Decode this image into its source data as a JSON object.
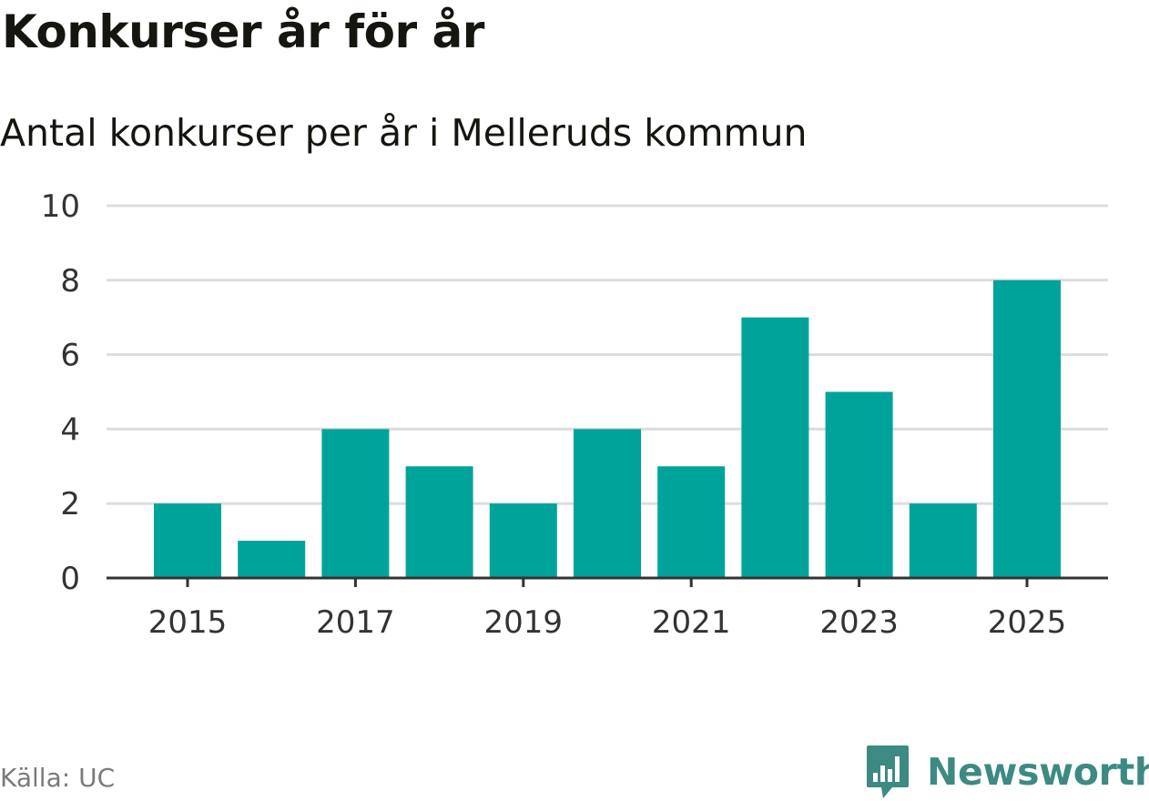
{
  "header": {
    "title": "Konkurser år för år",
    "subtitle": "Antal konkurser per år i Melleruds kommun"
  },
  "footer": {
    "source": "Källa: UC",
    "brand": "Newsworthy",
    "brand_icon": "bar-chart-badge-icon"
  },
  "colors": {
    "bar": "#00a39a",
    "grid": "#dddddd",
    "axis": "#333333",
    "brand": "#3d8a82"
  },
  "chart_data": {
    "type": "bar",
    "categories": [
      "2015",
      "2016",
      "2017",
      "2018",
      "2019",
      "2020",
      "2021",
      "2022",
      "2023",
      "2024",
      "2025"
    ],
    "series": [
      {
        "values": [
          2,
          1,
          4,
          3,
          2,
          4,
          3,
          7,
          5,
          2,
          8
        ]
      }
    ],
    "x_tick_labels": [
      "2015",
      "2017",
      "2019",
      "2021",
      "2023",
      "2025"
    ],
    "y_ticks": [
      0,
      2,
      4,
      6,
      8,
      10
    ],
    "ylim": [
      0,
      10
    ],
    "xlabel": "",
    "ylabel": "",
    "grid": true,
    "legend": "none"
  }
}
